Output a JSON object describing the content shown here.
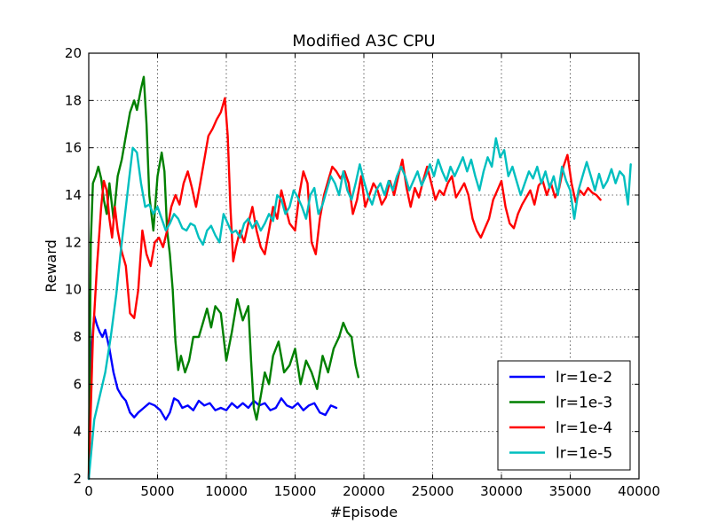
{
  "chart_data": {
    "type": "line",
    "title": "Modified A3C CPU",
    "xlabel": "#Episode",
    "ylabel": "Reward",
    "xlim": [
      0,
      40000
    ],
    "ylim": [
      2,
      20
    ],
    "xticks": [
      0,
      5000,
      10000,
      15000,
      20000,
      25000,
      30000,
      35000,
      40000
    ],
    "yticks": [
      2,
      4,
      6,
      8,
      10,
      12,
      14,
      16,
      18,
      20
    ],
    "grid": true,
    "legend_position": "lower-right",
    "series": [
      {
        "name": "lr=1e-2",
        "color": "#0000ff",
        "x": [
          0,
          200,
          400,
          600,
          800,
          1000,
          1200,
          1500,
          1800,
          2100,
          2400,
          2700,
          3000,
          3300,
          3600,
          4000,
          4400,
          4800,
          5200,
          5600,
          5900,
          6200,
          6500,
          6800,
          7200,
          7600,
          8000,
          8400,
          8800,
          9200,
          9600,
          10000,
          10400,
          10800,
          11200,
          11600,
          12000,
          12400,
          12800,
          13200,
          13600,
          14000,
          14400,
          14800,
          15200,
          15600,
          16000,
          16400,
          16800,
          17200,
          17600,
          18000
        ],
        "y": [
          2.0,
          7.5,
          8.9,
          8.5,
          8.2,
          8.0,
          8.3,
          7.5,
          6.5,
          5.8,
          5.5,
          5.3,
          4.8,
          4.6,
          4.8,
          5.0,
          5.2,
          5.1,
          4.9,
          4.5,
          4.8,
          5.4,
          5.3,
          5.0,
          5.1,
          4.9,
          5.3,
          5.1,
          5.2,
          4.9,
          5.0,
          4.9,
          5.2,
          5.0,
          5.2,
          5.0,
          5.3,
          5.1,
          5.2,
          4.9,
          5.0,
          5.4,
          5.1,
          5.0,
          5.2,
          4.9,
          5.1,
          5.2,
          4.8,
          4.7,
          5.1,
          5.0
        ]
      },
      {
        "name": "lr=1e-3",
        "color": "#008000",
        "x": [
          0,
          150,
          300,
          500,
          700,
          900,
          1100,
          1300,
          1500,
          1800,
          2100,
          2400,
          2700,
          3000,
          3300,
          3500,
          3800,
          4000,
          4200,
          4400,
          4700,
          5000,
          5300,
          5500,
          5700,
          5900,
          6100,
          6300,
          6500,
          6700,
          7000,
          7300,
          7600,
          8000,
          8300,
          8600,
          8900,
          9200,
          9600,
          10000,
          10400,
          10800,
          11200,
          11600,
          11800,
          12000,
          12200,
          12500,
          12800,
          13100,
          13400,
          13800,
          14200,
          14600,
          15000,
          15400,
          15800,
          16200,
          16600,
          17000,
          17400,
          17800,
          18200,
          18500,
          18800,
          19100,
          19400,
          19600
        ],
        "y": [
          2.0,
          12.0,
          14.5,
          14.8,
          15.2,
          14.7,
          13.8,
          13.2,
          14.5,
          13.0,
          14.8,
          15.5,
          16.5,
          17.5,
          18.0,
          17.6,
          18.5,
          19.0,
          17.0,
          14.0,
          12.5,
          14.8,
          15.8,
          15.0,
          12.5,
          11.5,
          10.0,
          7.8,
          6.6,
          7.2,
          6.5,
          7.0,
          8.0,
          8.0,
          8.6,
          9.2,
          8.4,
          9.3,
          9.0,
          7.0,
          8.2,
          9.6,
          8.7,
          9.3,
          7.0,
          5.0,
          4.5,
          5.5,
          6.5,
          6.0,
          7.2,
          7.8,
          6.5,
          6.8,
          7.5,
          6.0,
          7.0,
          6.5,
          5.8,
          7.2,
          6.5,
          7.5,
          8.0,
          8.6,
          8.2,
          8.0,
          6.8,
          6.3
        ]
      },
      {
        "name": "lr=1e-4",
        "color": "#ff0000",
        "x": [
          0,
          300,
          600,
          900,
          1100,
          1300,
          1500,
          1700,
          1900,
          2100,
          2400,
          2700,
          3000,
          3300,
          3600,
          3900,
          4200,
          4500,
          4800,
          5100,
          5400,
          5700,
          6000,
          6300,
          6600,
          6900,
          7200,
          7500,
          7800,
          8100,
          8400,
          8700,
          9000,
          9300,
          9600,
          9900,
          10100,
          10300,
          10500,
          10700,
          11000,
          11300,
          11600,
          11900,
          12200,
          12500,
          12800,
          13100,
          13400,
          13700,
          14000,
          14300,
          14600,
          15000,
          15300,
          15600,
          15900,
          16200,
          16500,
          16800,
          17100,
          17400,
          17700,
          18000,
          18300,
          18600,
          18900,
          19200,
          19500,
          19800,
          20100,
          20400,
          20700,
          21000,
          21300,
          21600,
          21900,
          22200,
          22500,
          22800,
          23100,
          23400,
          23700,
          24000,
          24300,
          24600,
          24900,
          25200,
          25500,
          25800,
          26100,
          26400,
          26700,
          27000,
          27300,
          27600,
          27900,
          28200,
          28500,
          28800,
          29100,
          29400,
          29700,
          30000,
          30300,
          30600,
          30900,
          31200,
          31500,
          31800,
          32100,
          32400,
          32700,
          33000,
          33300,
          33600,
          33900,
          34200,
          34500,
          34800,
          35100,
          35400,
          35700,
          36000,
          36300,
          36600,
          36900,
          37200
        ],
        "y": [
          2.0,
          8.0,
          11.0,
          13.5,
          14.6,
          14.2,
          13.0,
          12.2,
          13.5,
          12.5,
          11.6,
          11.0,
          9.0,
          8.8,
          10.0,
          12.5,
          11.5,
          11.0,
          12.0,
          12.2,
          11.8,
          12.5,
          13.5,
          14.0,
          13.6,
          14.5,
          15.0,
          14.3,
          13.5,
          14.5,
          15.5,
          16.5,
          16.8,
          17.2,
          17.5,
          18.1,
          16.5,
          13.5,
          11.2,
          11.8,
          12.5,
          12.0,
          12.8,
          13.5,
          12.5,
          11.8,
          11.5,
          12.5,
          13.5,
          13.0,
          14.2,
          13.5,
          12.8,
          12.5,
          14.0,
          15.0,
          14.5,
          12.0,
          11.5,
          13.0,
          14.0,
          14.6,
          15.2,
          15.0,
          14.7,
          15.0,
          14.5,
          13.2,
          13.8,
          14.8,
          13.5,
          14.0,
          14.5,
          14.2,
          13.6,
          13.9,
          14.6,
          14.0,
          14.8,
          15.5,
          14.3,
          13.5,
          14.3,
          13.9,
          14.6,
          15.2,
          14.5,
          13.8,
          14.2,
          14.0,
          14.5,
          14.8,
          13.9,
          14.2,
          14.5,
          14.0,
          13.0,
          12.5,
          12.2,
          12.6,
          13.0,
          13.8,
          14.2,
          14.6,
          13.5,
          12.8,
          12.6,
          13.2,
          13.6,
          13.9,
          14.2,
          13.6,
          14.4,
          14.6,
          14.0,
          14.5,
          13.9,
          14.3,
          15.2,
          15.7,
          14.5,
          13.7,
          14.2,
          14.0,
          14.3,
          14.1,
          14.0,
          13.8
        ]
      },
      {
        "name": "lr=1e-5",
        "color": "#00bfbf",
        "x": [
          0,
          400,
          800,
          1200,
          1600,
          2000,
          2300,
          2600,
          2900,
          3200,
          3500,
          3800,
          4100,
          4400,
          4700,
          5000,
          5300,
          5600,
          5900,
          6200,
          6500,
          6800,
          7100,
          7400,
          7700,
          8000,
          8300,
          8600,
          8900,
          9200,
          9500,
          9800,
          10100,
          10400,
          10700,
          11000,
          11300,
          11600,
          11900,
          12200,
          12500,
          12800,
          13100,
          13400,
          13700,
          14000,
          14300,
          14600,
          14900,
          15200,
          15500,
          15800,
          16100,
          16400,
          16700,
          17000,
          17300,
          17600,
          17900,
          18200,
          18500,
          18800,
          19100,
          19400,
          19700,
          20000,
          20300,
          20600,
          20900,
          21200,
          21500,
          21800,
          22100,
          22400,
          22700,
          23000,
          23300,
          23600,
          23900,
          24200,
          24500,
          24800,
          25100,
          25400,
          25700,
          26000,
          26300,
          26600,
          26900,
          27200,
          27500,
          27800,
          28100,
          28400,
          28700,
          29000,
          29300,
          29600,
          29900,
          30200,
          30500,
          30800,
          31100,
          31400,
          31700,
          32000,
          32300,
          32600,
          32900,
          33200,
          33500,
          33800,
          34100,
          34400,
          34700,
          35000,
          35300,
          35600,
          35900,
          36200,
          36500,
          36800,
          37100,
          37400,
          37700,
          38000,
          38300,
          38600,
          38900,
          39200,
          39400
        ],
        "y": [
          2.0,
          4.5,
          5.5,
          6.5,
          8.0,
          9.8,
          11.5,
          13.0,
          14.5,
          16.0,
          15.8,
          14.5,
          13.5,
          13.6,
          13.2,
          13.5,
          13.0,
          12.5,
          12.8,
          13.2,
          13.0,
          12.6,
          12.5,
          12.8,
          12.7,
          12.2,
          11.9,
          12.5,
          12.7,
          12.3,
          12.0,
          13.2,
          12.8,
          12.4,
          12.5,
          12.2,
          12.8,
          13.0,
          12.6,
          12.9,
          12.5,
          12.8,
          13.2,
          12.9,
          14.0,
          13.8,
          13.2,
          13.5,
          14.2,
          13.9,
          13.5,
          13.0,
          14.0,
          14.3,
          13.2,
          13.6,
          14.2,
          14.8,
          14.5,
          14.0,
          15.0,
          14.2,
          13.8,
          14.5,
          15.3,
          14.6,
          14.0,
          13.6,
          14.2,
          14.5,
          14.0,
          14.6,
          14.2,
          14.8,
          15.2,
          14.8,
          14.2,
          14.6,
          15.0,
          14.4,
          14.8,
          15.3,
          14.8,
          15.5,
          15.0,
          14.6,
          15.2,
          14.8,
          15.2,
          15.6,
          15.0,
          15.5,
          14.8,
          14.2,
          15.0,
          15.6,
          15.2,
          16.4,
          15.6,
          15.9,
          14.8,
          15.2,
          14.6,
          14.0,
          14.5,
          15.0,
          14.7,
          15.2,
          14.5,
          15.0,
          14.3,
          14.8,
          14.0,
          15.2,
          14.6,
          14.2,
          13.0,
          14.2,
          14.8,
          15.4,
          14.8,
          14.2,
          14.9,
          14.3,
          14.6,
          15.1,
          14.5,
          15.0,
          14.8,
          13.6,
          15.3
        ]
      }
    ]
  }
}
